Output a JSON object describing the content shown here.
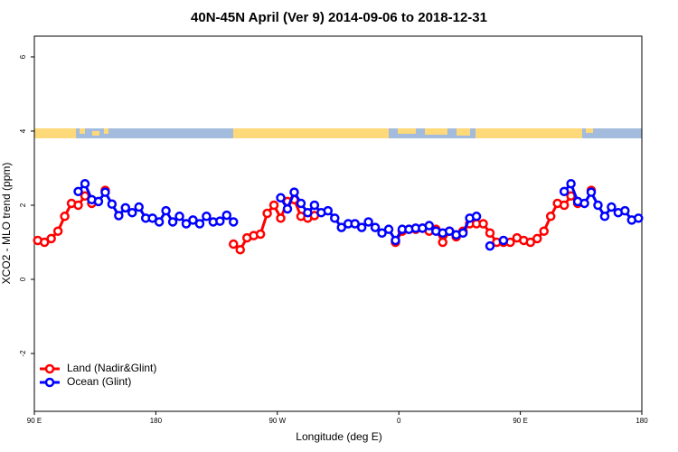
{
  "chart_data": {
    "type": "line",
    "title": "40N-45N April (Ver 9)   2014-09-06 to 2018-12-31",
    "x_label": "Longitude (deg E)",
    "y_label": "XCO2 - MLO trend (ppm)",
    "xlim": [
      90,
      540
    ],
    "ylim": [
      -3.56,
      6.56
    ],
    "xticks": [
      {
        "value": 90,
        "label": "90 E"
      },
      180,
      {
        "value": 270,
        "label": "90 W"
      },
      {
        "value": 360,
        "label": "0"
      },
      {
        "value": 450,
        "label": "90 E"
      },
      180
    ],
    "yticks": [
      -2,
      0,
      2,
      4,
      6
    ],
    "legend": "bottomleft",
    "x": [
      92.5,
      97.5,
      102.5,
      107.5,
      112.5,
      117.5,
      122.5,
      127.5,
      132.5,
      137.5,
      142.5,
      147.5,
      152.5,
      157.5,
      162.5,
      167.5,
      172.5,
      177.5,
      182.5,
      187.5,
      192.5,
      197.5,
      202.5,
      207.5,
      212.5,
      217.5,
      222.5,
      227.5,
      232.5,
      237.5,
      242.5,
      247.5,
      252.5,
      257.5,
      262.5,
      267.5,
      272.5,
      277.5,
      282.5,
      287.5,
      292.5,
      297.5,
      302.5,
      307.5,
      312.5,
      317.5,
      322.5,
      327.5,
      332.5,
      337.5,
      342.5,
      347.5,
      352.5,
      357.5,
      362.5,
      367.5,
      372.5,
      377.5,
      382.5,
      387.5,
      392.5,
      397.5,
      402.5,
      407.5,
      412.5,
      417.5,
      422.5,
      427.5,
      432.5,
      437.5,
      442.5,
      447.5,
      452.5,
      457.5,
      462.5,
      467.5,
      472.5,
      477.5,
      482.5,
      487.5,
      492.5,
      497.5,
      502.5,
      507.5,
      512.5,
      517.5,
      522.5,
      527.5,
      532.5,
      537.5
    ],
    "series": [
      {
        "name": "Land (Nadir&Glint)",
        "color": "#ff0000",
        "values": [
          1.05,
          1.0,
          1.1,
          1.3,
          1.7,
          2.05,
          2.0,
          2.25,
          2.05,
          null,
          2.4,
          null,
          null,
          null,
          null,
          null,
          null,
          null,
          null,
          null,
          null,
          null,
          null,
          null,
          null,
          null,
          null,
          null,
          null,
          0.95,
          0.8,
          1.12,
          1.18,
          1.22,
          1.78,
          2.0,
          1.65,
          2.1,
          2.15,
          1.7,
          1.65,
          1.72,
          null,
          null,
          null,
          null,
          null,
          null,
          null,
          null,
          null,
          null,
          null,
          1.0,
          1.3,
          1.35,
          1.35,
          1.38,
          1.3,
          1.35,
          1.0,
          1.3,
          1.15,
          1.3,
          1.5,
          1.5,
          1.5,
          1.25,
          1.0,
          1.0,
          1.0,
          1.12,
          1.05,
          1.0,
          1.1,
          1.3,
          1.7,
          2.05,
          2.0,
          2.25,
          2.05,
          null,
          2.4,
          null,
          null,
          null,
          null,
          null,
          null,
          null
        ]
      },
      {
        "name": "Ocean (Glint)",
        "color": "#0000ff",
        "values": [
          null,
          null,
          null,
          null,
          null,
          null,
          2.37,
          2.58,
          2.15,
          2.1,
          2.35,
          2.03,
          1.72,
          1.93,
          1.8,
          1.95,
          1.65,
          1.65,
          1.55,
          1.85,
          1.55,
          1.7,
          1.5,
          1.6,
          1.5,
          1.7,
          1.55,
          1.57,
          1.73,
          1.55,
          null,
          null,
          null,
          null,
          null,
          null,
          2.2,
          1.9,
          2.35,
          2.05,
          1.8,
          2.0,
          1.8,
          1.85,
          1.65,
          1.4,
          1.5,
          1.5,
          1.4,
          1.55,
          1.4,
          1.25,
          1.35,
          1.05,
          1.35,
          1.35,
          1.38,
          1.38,
          1.45,
          1.3,
          1.25,
          1.3,
          1.2,
          1.25,
          1.65,
          1.7,
          null,
          0.9,
          null,
          1.05,
          null,
          null,
          null,
          null,
          null,
          null,
          null,
          null,
          2.37,
          2.58,
          2.1,
          2.05,
          2.35,
          2.0,
          1.7,
          1.95,
          1.8,
          1.85,
          1.6,
          1.65
        ]
      }
    ]
  }
}
